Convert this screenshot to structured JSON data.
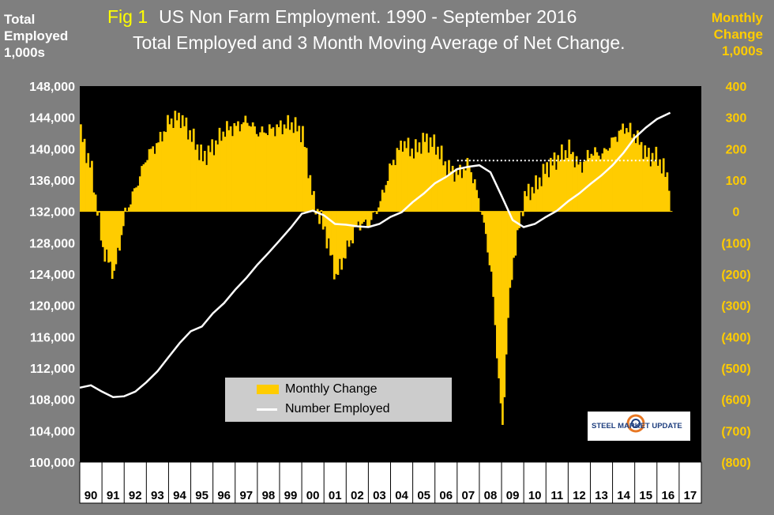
{
  "title": {
    "fig_label": "Fig 1",
    "line1": "US Non Farm Employment. 1990 - September 2016",
    "line2": "Total Employed and 3 Month Moving Average of Net Change."
  },
  "left_axis_title": [
    "Total",
    "Employed",
    "1,000s"
  ],
  "right_axis_title": [
    "Monthly",
    "Change",
    "1,000s"
  ],
  "legend": {
    "bar_label": "Monthly Change",
    "line_label": "Number Employed"
  },
  "logo": {
    "text": "STEEL MARKET UPDATE"
  },
  "colors": {
    "background": "#7f7f7f",
    "plot": "#000000",
    "bar": "#ffcc00",
    "line": "#ffffff",
    "fig_label": "#ffff00"
  },
  "chart_data": {
    "type": "bar",
    "x_tick_labels": [
      "90",
      "91",
      "92",
      "93",
      "94",
      "95",
      "96",
      "97",
      "98",
      "99",
      "00",
      "01",
      "02",
      "03",
      "04",
      "05",
      "06",
      "07",
      "08",
      "09",
      "10",
      "11",
      "12",
      "13",
      "14",
      "15",
      "16",
      "17"
    ],
    "left_axis": {
      "min": 100000,
      "max": 148000,
      "step": 4000,
      "tick_labels": [
        "100,000",
        "104,000",
        "108,000",
        "112,000",
        "116,000",
        "120,000",
        "124,000",
        "128,000",
        "132,000",
        "136,000",
        "140,000",
        "144,000",
        "148,000"
      ]
    },
    "right_axis": {
      "min": -800,
      "max": 400,
      "step": 100,
      "tick_labels": [
        "(800)",
        "(700)",
        "(600)",
        "(500)",
        "(400)",
        "(300)",
        "(200)",
        "(100)",
        "0",
        "100",
        "200",
        "300",
        "400"
      ]
    },
    "series": [
      {
        "name": "Monthly Change",
        "axis": "right",
        "kind": "bar",
        "x": [
          1990.0,
          1990.5,
          1991.0,
          1991.5,
          1992.0,
          1992.5,
          1993.0,
          1993.5,
          1994.0,
          1994.5,
          1995.0,
          1995.5,
          1996.0,
          1996.5,
          1997.0,
          1997.5,
          1998.0,
          1998.5,
          1999.0,
          1999.5,
          2000.0,
          2000.5,
          2001.0,
          2001.5,
          2002.0,
          2002.5,
          2003.0,
          2003.5,
          2004.0,
          2004.5,
          2005.0,
          2005.5,
          2006.0,
          2006.5,
          2007.0,
          2007.5,
          2008.0,
          2008.25,
          2008.5,
          2008.75,
          2009.0,
          2009.25,
          2009.5,
          2010.0,
          2010.5,
          2011.0,
          2011.5,
          2012.0,
          2012.5,
          2013.0,
          2013.5,
          2014.0,
          2014.5,
          2015.0,
          2015.5,
          2016.0,
          2016.5
        ],
        "values": [
          250,
          130,
          -120,
          -200,
          -10,
          80,
          180,
          220,
          290,
          300,
          240,
          170,
          210,
          260,
          270,
          290,
          250,
          260,
          270,
          280,
          250,
          30,
          -60,
          -210,
          -120,
          -40,
          -40,
          30,
          150,
          220,
          190,
          230,
          210,
          140,
          120,
          150,
          20,
          -80,
          -200,
          -450,
          -700,
          -330,
          -150,
          50,
          80,
          140,
          170,
          200,
          140,
          190,
          180,
          230,
          270,
          240,
          180,
          170,
          100
        ]
      },
      {
        "name": "Number Employed",
        "axis": "left",
        "kind": "line",
        "x": [
          1990.0,
          1990.5,
          1991.0,
          1991.5,
          1992.0,
          1992.5,
          1993.0,
          1993.5,
          1994.0,
          1994.5,
          1995.0,
          1995.5,
          1996.0,
          1996.5,
          1997.0,
          1997.5,
          1998.0,
          1998.5,
          1999.0,
          1999.5,
          2000.0,
          2000.5,
          2001.0,
          2001.5,
          2002.0,
          2002.5,
          2003.0,
          2003.5,
          2004.0,
          2004.5,
          2005.0,
          2005.5,
          2006.0,
          2006.5,
          2007.0,
          2007.5,
          2008.0,
          2008.5,
          2009.0,
          2009.5,
          2010.0,
          2010.5,
          2011.0,
          2011.5,
          2012.0,
          2012.5,
          2013.0,
          2013.5,
          2014.0,
          2014.5,
          2015.0,
          2015.5,
          2016.0,
          2016.6
        ],
        "values": [
          109500,
          109800,
          109000,
          108300,
          108400,
          109000,
          110200,
          111600,
          113400,
          115200,
          116700,
          117300,
          119000,
          120300,
          122000,
          123500,
          125200,
          126700,
          128300,
          129900,
          131700,
          132100,
          131500,
          130400,
          130300,
          130100,
          130000,
          130400,
          131300,
          131900,
          133200,
          134300,
          135600,
          136400,
          137400,
          137700,
          137900,
          137000,
          134000,
          130900,
          130000,
          130400,
          131300,
          132100,
          133300,
          134300,
          135500,
          136600,
          137900,
          139500,
          141400,
          142700,
          143800,
          144600
        ]
      }
    ],
    "annotation": {
      "dotted_level_left_axis": 138500,
      "x_from": 2007.0,
      "x_to": 2016.0
    }
  }
}
